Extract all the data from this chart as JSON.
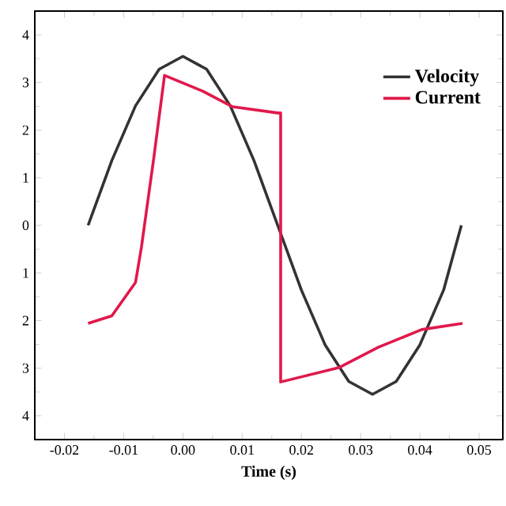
{
  "chart_data": {
    "type": "line",
    "xlabel": "Time (s)",
    "xlim": [
      -0.025,
      0.054
    ],
    "ylim": [
      -4.5,
      4.5
    ],
    "xticks": [
      {
        "value": -0.02,
        "label": "-0.02"
      },
      {
        "value": -0.01,
        "label": "-0.01"
      },
      {
        "value": 0,
        "label": "0.00"
      },
      {
        "value": 0.01,
        "label": "0.01"
      },
      {
        "value": 0.02,
        "label": "0.02"
      },
      {
        "value": 0.03,
        "label": "0.03"
      },
      {
        "value": 0.04,
        "label": "0.04"
      },
      {
        "value": 0.05,
        "label": "0.05"
      }
    ],
    "yticks": [
      {
        "value": 4,
        "label": "4"
      },
      {
        "value": 3,
        "label": "3"
      },
      {
        "value": 2,
        "label": "2"
      },
      {
        "value": 1,
        "label": "1"
      },
      {
        "value": 0,
        "label": "0"
      },
      {
        "value": -1,
        "label": "1"
      },
      {
        "value": -2,
        "label": "2"
      },
      {
        "value": -3,
        "label": "3"
      },
      {
        "value": -4,
        "label": "4"
      }
    ],
    "legend": "top right",
    "grid": false,
    "series": [
      {
        "name": "Velocity",
        "color": "#333333",
        "x": [
          -0.016,
          -0.012,
          -0.008,
          -0.004,
          0,
          0.004,
          0.008,
          0.012,
          0.016,
          0.02,
          0.024,
          0.028,
          0.032,
          0.036,
          0.04,
          0.044,
          0.047
        ],
        "values": [
          0,
          1.36,
          2.51,
          3.28,
          3.55,
          3.28,
          2.51,
          1.36,
          0,
          -1.36,
          -2.51,
          -3.28,
          -3.55,
          -3.28,
          -2.51,
          -1.36,
          0
        ]
      },
      {
        "name": "Current",
        "color": "#e0194a",
        "x": [
          -0.016,
          -0.012,
          -0.008,
          -0.007,
          -0.0049,
          -0.0031,
          0.0033,
          0.0084,
          0.016,
          0.0165,
          0.0165,
          0.0263,
          0.033,
          0.0403,
          0.0472
        ],
        "values": [
          -2.06,
          -1.9,
          -1.2,
          -0.46,
          1.43,
          3.15,
          2.82,
          2.49,
          2.36,
          2.36,
          -3.29,
          -2.99,
          -2.56,
          -2.19,
          -2.06
        ]
      }
    ]
  }
}
